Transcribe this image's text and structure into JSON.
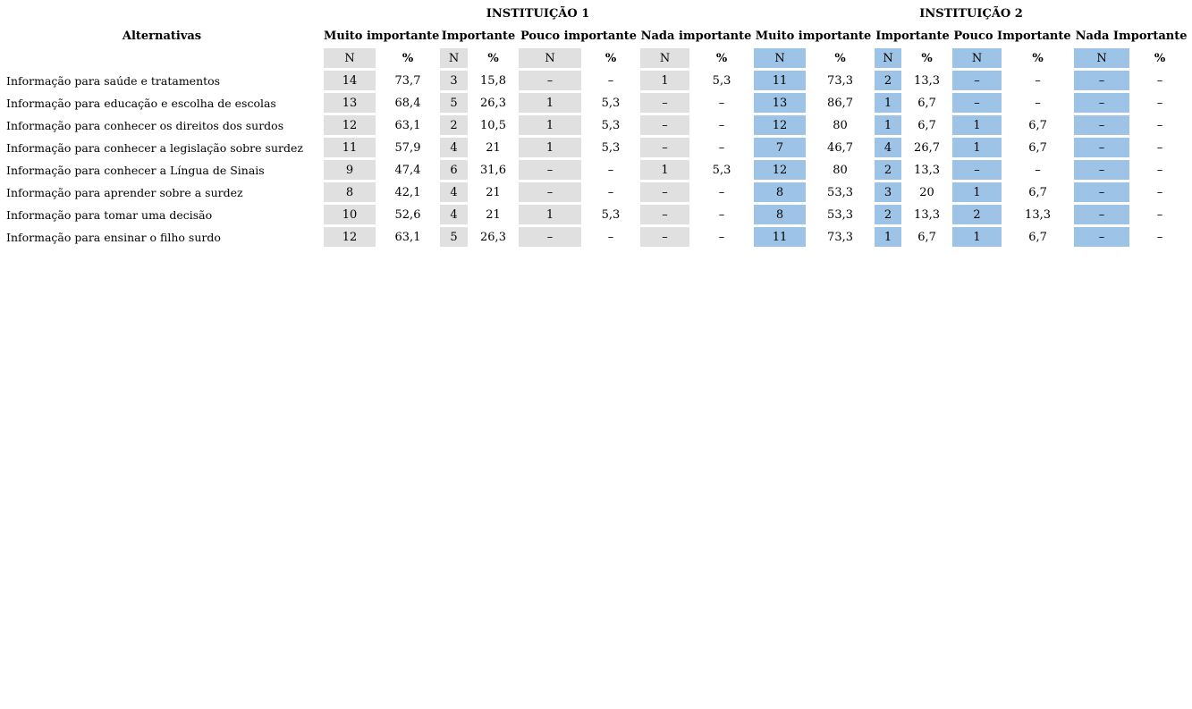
{
  "table": {
    "alternativas_label": "Alternativas",
    "n_label": "N",
    "pct_label": "%",
    "institutions": [
      {
        "title": "INSTITUIÇÃO 1",
        "categories": [
          "Muito importante",
          "Importante",
          "Pouco importante",
          "Nada importante"
        ]
      },
      {
        "title": "INSTITUIÇÃO 2",
        "categories": [
          "Muito importante",
          "Importante",
          "Pouco Importante",
          "Nada Importante"
        ]
      }
    ],
    "rows": [
      {
        "label": "Informação para saúde e tratamentos",
        "cells": [
          "14",
          "73,7",
          "3",
          "15,8",
          "–",
          "–",
          "1",
          "5,3",
          "11",
          "73,3",
          "2",
          "13,3",
          "–",
          "–",
          "–",
          "–"
        ]
      },
      {
        "label": "Informação para educação e escolha de escolas",
        "cells": [
          "13",
          "68,4",
          "5",
          "26,3",
          "1",
          "5,3",
          "–",
          "–",
          "13",
          "86,7",
          "1",
          "6,7",
          "–",
          "–",
          "–",
          "–"
        ]
      },
      {
        "label": "Informação para conhecer os direitos dos surdos",
        "cells": [
          "12",
          "63,1",
          "2",
          "10,5",
          "1",
          "5,3",
          "–",
          "–",
          "12",
          "80",
          "1",
          "6,7",
          "1",
          "6,7",
          "–",
          "–"
        ]
      },
      {
        "label": "Informação para conhecer a legislação sobre surdez",
        "cells": [
          "11",
          "57,9",
          "4",
          "21",
          "1",
          "5,3",
          "–",
          "–",
          "7",
          "46,7",
          "4",
          "26,7",
          "1",
          "6,7",
          "–",
          "–"
        ]
      },
      {
        "label": "Informação para conhecer a Língua de Sinais",
        "cells": [
          "9",
          "47,4",
          "6",
          "31,6",
          "–",
          "–",
          "1",
          "5,3",
          "12",
          "80",
          "2",
          "13,3",
          "–",
          "–",
          "–",
          "–"
        ]
      },
      {
        "label": "Informação para aprender sobre a surdez",
        "cells": [
          "8",
          "42,1",
          "4",
          "21",
          "–",
          "–",
          "–",
          "–",
          "8",
          "53,3",
          "3",
          "20",
          "1",
          "6,7",
          "–",
          "–"
        ]
      },
      {
        "label": "Informação para tomar uma decisão",
        "cells": [
          "10",
          "52,6",
          "4",
          "21",
          "1",
          "5,3",
          "–",
          "–",
          "8",
          "53,3",
          "2",
          "13,3",
          "2",
          "13,3",
          "–",
          "–"
        ]
      },
      {
        "label": "Informação para ensinar o filho surdo",
        "cells": [
          "12",
          "63,1",
          "5",
          "26,3",
          "–",
          "–",
          "–",
          "–",
          "11",
          "73,3",
          "1",
          "6,7",
          "1",
          "6,7",
          "–",
          "–"
        ]
      }
    ]
  },
  "colors": {
    "institution1_n_cell": "#e0e0e0",
    "institution2_n_cell": "#9dc3e6",
    "text": "#000000",
    "background": "#ffffff"
  }
}
